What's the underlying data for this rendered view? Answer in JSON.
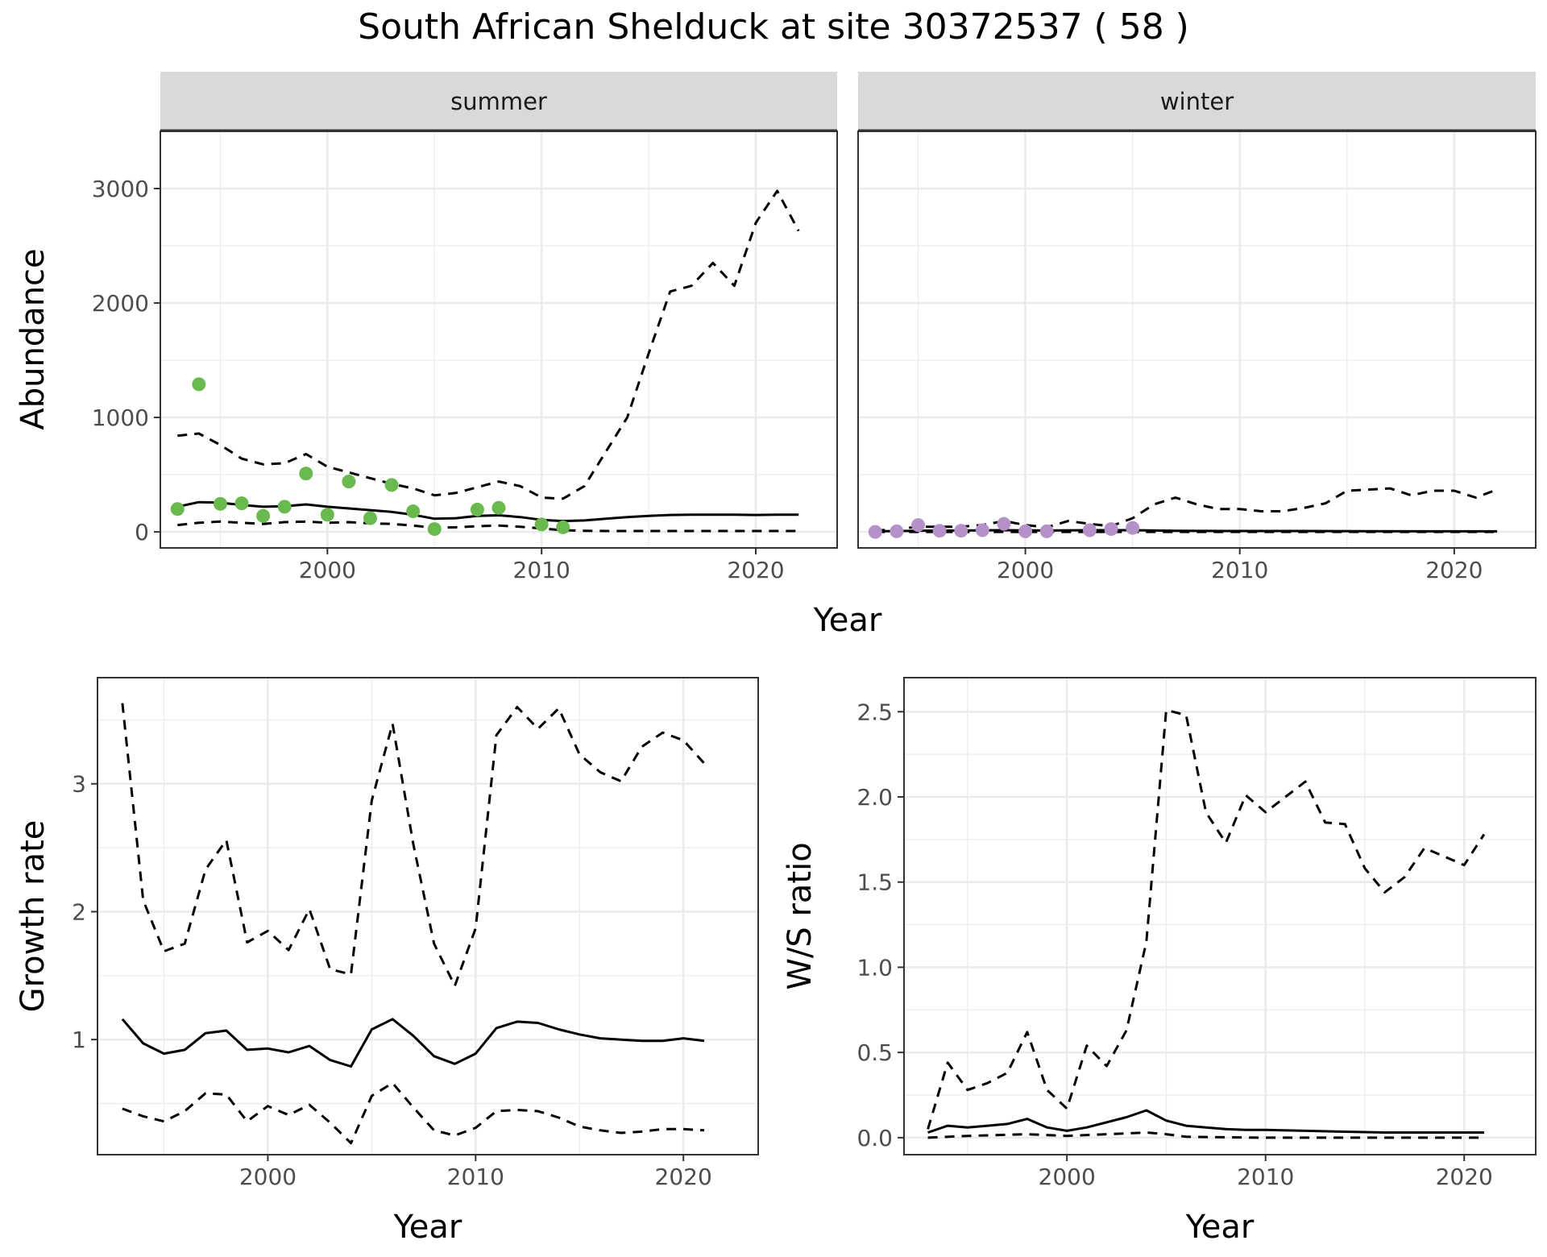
{
  "title": "South African Shelduck at site 30372537 ( 58 )",
  "colors": {
    "summer_points": "#6ab94e",
    "winter_points": "#b491c8",
    "line": "#000000",
    "strip_bg": "#d9d9d9",
    "grid": "#ebebeb",
    "panel_border": "#333333"
  },
  "chart_data": [
    {
      "id": "abundance",
      "type": "scatter",
      "ylabel": "Abundance",
      "xlabel": "Year",
      "xlim": [
        1992.2,
        2023.8
      ],
      "ylim": [
        -140,
        3500
      ],
      "xticks": [
        2000,
        2010,
        2020
      ],
      "yticks": [
        0,
        1000,
        2000,
        3000
      ],
      "grid": true,
      "facets": [
        {
          "label": "summer",
          "points": {
            "color": "#6ab94e",
            "x": [
              1993,
              1994,
              1995,
              1996,
              1997,
              1998,
              1999,
              2000,
              2001,
              2002,
              2003,
              2004,
              2005,
              2007,
              2008,
              2010,
              2011
            ],
            "y": [
              200,
              1290,
              245,
              250,
              140,
              220,
              510,
              150,
              440,
              120,
              410,
              180,
              25,
              195,
              210,
              65,
              40
            ]
          },
          "median": {
            "x": [
              1993,
              1994,
              1995,
              1996,
              1997,
              1998,
              1999,
              2000,
              2001,
              2002,
              2003,
              2004,
              2005,
              2006,
              2007,
              2008,
              2009,
              2010,
              2011,
              2012,
              2013,
              2014,
              2015,
              2016,
              2017,
              2018,
              2019,
              2020,
              2021,
              2022
            ],
            "y": [
              220,
              260,
              255,
              235,
              220,
              225,
              240,
              220,
              205,
              190,
              175,
              150,
              115,
              120,
              140,
              145,
              130,
              105,
              95,
              100,
              115,
              130,
              140,
              148,
              150,
              150,
              150,
              148,
              150,
              150
            ]
          },
          "upper": {
            "x": [
              1993,
              1994,
              1995,
              1996,
              1997,
              1998,
              1999,
              2000,
              2001,
              2002,
              2003,
              2004,
              2005,
              2006,
              2007,
              2008,
              2009,
              2010,
              2011,
              2012,
              2013,
              2014,
              2015,
              2016,
              2017,
              2018,
              2019,
              2020,
              2021,
              2022
            ],
            "y": [
              840,
              860,
              760,
              640,
              590,
              600,
              680,
              570,
              520,
              470,
              420,
              380,
              320,
              340,
              390,
              440,
              400,
              300,
              290,
              400,
              700,
              1000,
              1560,
              2100,
              2150,
              2350,
              2150,
              2700,
              2980,
              2630
            ]
          },
          "lower": {
            "x": [
              1993,
              1994,
              1995,
              1996,
              1997,
              1998,
              1999,
              2000,
              2001,
              2002,
              2003,
              2004,
              2005,
              2006,
              2007,
              2008,
              2009,
              2010,
              2011,
              2012,
              2013,
              2014,
              2015,
              2016,
              2017,
              2018,
              2019,
              2020,
              2021,
              2022
            ],
            "y": [
              60,
              80,
              90,
              80,
              70,
              85,
              90,
              80,
              85,
              75,
              70,
              55,
              35,
              40,
              50,
              55,
              45,
              30,
              15,
              10,
              8,
              8,
              8,
              8,
              8,
              8,
              8,
              8,
              8,
              8
            ]
          }
        },
        {
          "label": "winter",
          "points": {
            "color": "#b491c8",
            "x": [
              1993,
              1994,
              1995,
              1996,
              1997,
              1998,
              1999,
              2000,
              2001,
              2003,
              2004,
              2005
            ],
            "y": [
              0,
              5,
              60,
              10,
              10,
              15,
              70,
              5,
              5,
              15,
              25,
              35
            ]
          },
          "median": {
            "x": [
              1993,
              1995,
              1997,
              1999,
              2001,
              2003,
              2005,
              2007,
              2010,
              2013,
              2016,
              2019,
              2022
            ],
            "y": [
              5,
              10,
              12,
              15,
              12,
              15,
              15,
              10,
              8,
              8,
              6,
              5,
              5
            ]
          },
          "upper": {
            "x": [
              1993,
              1994,
              1995,
              1996,
              1997,
              1998,
              1999,
              2000,
              2001,
              2002,
              2003,
              2004,
              2005,
              2006,
              2007,
              2008,
              2009,
              2010,
              2011,
              2012,
              2013,
              2014,
              2015,
              2016,
              2017,
              2018,
              2019,
              2020,
              2021,
              2022
            ],
            "y": [
              10,
              25,
              45,
              45,
              45,
              60,
              95,
              60,
              40,
              95,
              70,
              50,
              120,
              240,
              300,
              240,
              200,
              200,
              180,
              180,
              210,
              250,
              360,
              370,
              380,
              320,
              360,
              360,
              300,
              370
            ]
          },
          "lower": {
            "x": [
              1993,
              2000,
              2005,
              2010,
              2015,
              2022
            ],
            "y": [
              0,
              0,
              0,
              0,
              0,
              0
            ]
          }
        }
      ]
    },
    {
      "id": "growth",
      "type": "line",
      "ylabel": "Growth rate",
      "xlabel": "Year",
      "xlim": [
        1991.8,
        2023.6
      ],
      "ylim": [
        0.1,
        3.83
      ],
      "xticks": [
        2000,
        2010,
        2020
      ],
      "yticks": [
        1,
        2,
        3
      ],
      "grid": true,
      "series": [
        {
          "style": "solid",
          "x": [
            1993,
            1994,
            1995,
            1996,
            1997,
            1998,
            1999,
            2000,
            2001,
            2002,
            2003,
            2004,
            2005,
            2006,
            2007,
            2008,
            2009,
            2010,
            2011,
            2012,
            2013,
            2014,
            2015,
            2016,
            2017,
            2018,
            2019,
            2020,
            2021
          ],
          "y": [
            1.16,
            0.97,
            0.89,
            0.92,
            1.05,
            1.07,
            0.92,
            0.93,
            0.9,
            0.95,
            0.84,
            0.79,
            1.08,
            1.16,
            1.03,
            0.87,
            0.81,
            0.89,
            1.09,
            1.14,
            1.13,
            1.08,
            1.04,
            1.01,
            1.0,
            0.99,
            0.99,
            1.01,
            0.99
          ]
        },
        {
          "style": "dashed",
          "x": [
            1993,
            1994,
            1995,
            1996,
            1997,
            1998,
            1999,
            2000,
            2001,
            2002,
            2003,
            2004,
            2005,
            2006,
            2007,
            2008,
            2009,
            2010,
            2011,
            2012,
            2013,
            2014,
            2015,
            2016,
            2017,
            2018,
            2019,
            2020,
            2021
          ],
          "y": [
            3.63,
            2.09,
            1.69,
            1.75,
            2.33,
            2.56,
            1.76,
            1.85,
            1.7,
            2.02,
            1.55,
            1.51,
            2.87,
            3.47,
            2.53,
            1.75,
            1.42,
            1.87,
            3.38,
            3.6,
            3.43,
            3.59,
            3.23,
            3.09,
            3.02,
            3.29,
            3.4,
            3.34,
            3.16
          ]
        },
        {
          "style": "dashed",
          "x": [
            1993,
            1994,
            1995,
            1996,
            1997,
            1998,
            1999,
            2000,
            2001,
            2002,
            2003,
            2004,
            2005,
            2006,
            2007,
            2008,
            2009,
            2010,
            2011,
            2012,
            2013,
            2014,
            2015,
            2016,
            2017,
            2018,
            2019,
            2020,
            2021
          ],
          "y": [
            0.46,
            0.4,
            0.36,
            0.44,
            0.58,
            0.57,
            0.36,
            0.48,
            0.41,
            0.49,
            0.35,
            0.19,
            0.56,
            0.66,
            0.47,
            0.29,
            0.25,
            0.31,
            0.44,
            0.45,
            0.44,
            0.39,
            0.32,
            0.29,
            0.27,
            0.28,
            0.3,
            0.3,
            0.29
          ]
        }
      ]
    },
    {
      "id": "ratio",
      "type": "line",
      "ylabel": "W/S ratio",
      "xlabel": "Year",
      "xlim": [
        1991.8,
        2023.6
      ],
      "ylim": [
        -0.1,
        2.7
      ],
      "xticks": [
        2000,
        2010,
        2020
      ],
      "yticks": [
        0.0,
        0.5,
        1.0,
        1.5,
        2.0,
        2.5
      ],
      "ytick_labels": [
        "0.0",
        "0.5",
        "1.0",
        "1.5",
        "2.0",
        "2.5"
      ],
      "grid": true,
      "series": [
        {
          "style": "solid",
          "x": [
            1993,
            1994,
            1995,
            1996,
            1997,
            1998,
            1999,
            2000,
            2001,
            2002,
            2003,
            2004,
            2005,
            2006,
            2007,
            2008,
            2009,
            2010,
            2012,
            2014,
            2016,
            2018,
            2020,
            2021
          ],
          "y": [
            0.03,
            0.07,
            0.06,
            0.07,
            0.08,
            0.11,
            0.06,
            0.04,
            0.06,
            0.09,
            0.12,
            0.16,
            0.1,
            0.07,
            0.06,
            0.05,
            0.045,
            0.045,
            0.04,
            0.035,
            0.03,
            0.03,
            0.03,
            0.03
          ]
        },
        {
          "style": "dashed",
          "x": [
            1993,
            1994,
            1995,
            1996,
            1997,
            1998,
            1999,
            2000,
            2001,
            2002,
            2003,
            2004,
            2005,
            2006,
            2007,
            2008,
            2009,
            2010,
            2011,
            2012,
            2013,
            2014,
            2015,
            2016,
            2017,
            2018,
            2019,
            2020,
            2021
          ],
          "y": [
            0.05,
            0.44,
            0.28,
            0.32,
            0.38,
            0.62,
            0.28,
            0.17,
            0.54,
            0.42,
            0.63,
            1.15,
            2.51,
            2.48,
            1.91,
            1.73,
            2.01,
            1.91,
            2.0,
            2.09,
            1.85,
            1.84,
            1.58,
            1.44,
            1.53,
            1.7,
            1.65,
            1.6,
            1.78
          ]
        },
        {
          "style": "dashed",
          "x": [
            1993,
            1995,
            1998,
            2000,
            2002,
            2004,
            2005,
            2006,
            2008,
            2010,
            2015,
            2021
          ],
          "y": [
            0.0,
            0.01,
            0.02,
            0.01,
            0.02,
            0.03,
            0.02,
            0.005,
            0.002,
            0.0,
            0.0,
            0.0
          ]
        }
      ]
    }
  ]
}
